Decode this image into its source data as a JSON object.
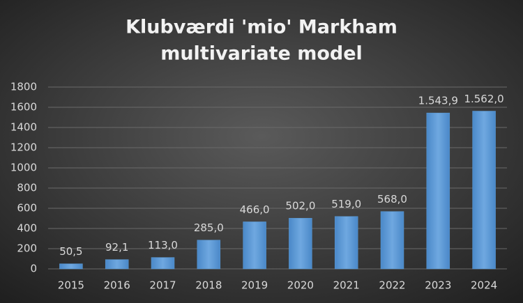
{
  "chart_data": {
    "type": "bar",
    "title": [
      "Klubværdi 'mio' Markham",
      "multivariate model"
    ],
    "categories": [
      "2015",
      "2016",
      "2017",
      "2018",
      "2019",
      "2020",
      "2021",
      "2022",
      "2023",
      "2024"
    ],
    "values": [
      50.5,
      92.1,
      113.0,
      285.0,
      466.0,
      502.0,
      519.0,
      568.0,
      1543.9,
      1562.0
    ],
    "value_labels": [
      "50,5",
      "92,1",
      "113,0",
      "285,0",
      "466,0",
      "502,0",
      "519,0",
      "568,0",
      "1.543,9",
      "1.562,0"
    ],
    "color": "#5b9bd5",
    "ylim": [
      0,
      1800
    ],
    "yticks": [
      0,
      200,
      400,
      600,
      800,
      1000,
      1200,
      1400,
      1600,
      1800
    ],
    "grid": true
  }
}
